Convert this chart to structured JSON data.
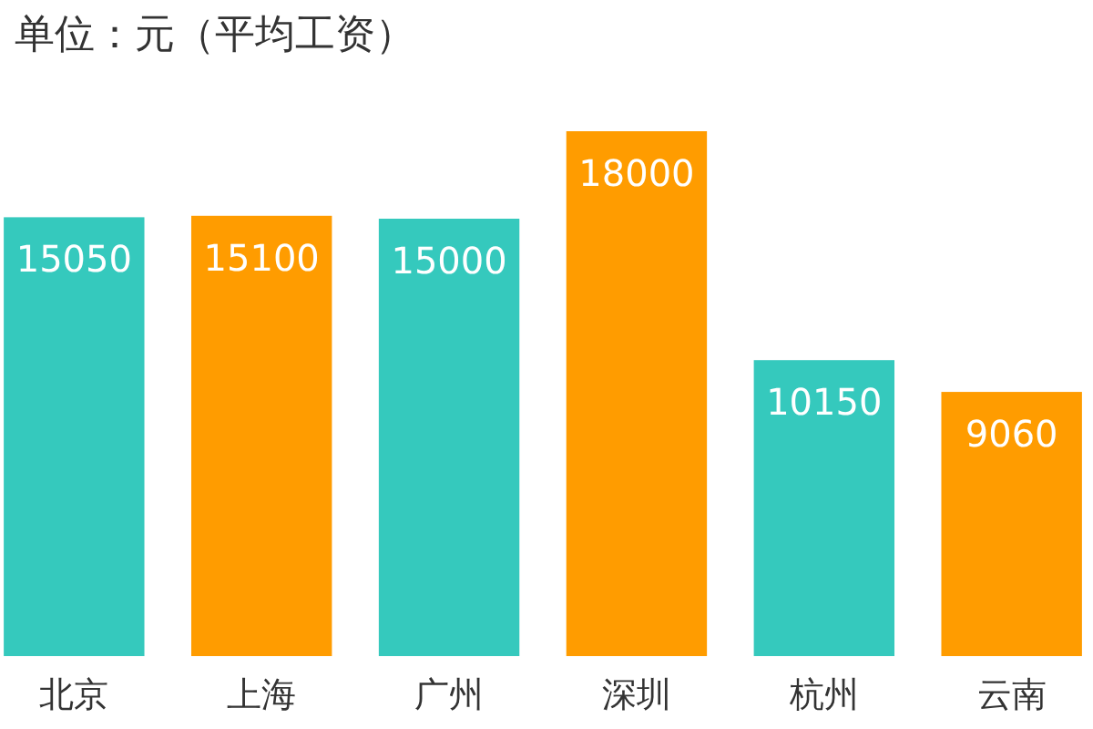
{
  "chart_data": {
    "type": "bar",
    "title": "单位：元（平均工资）",
    "categories": [
      "北京",
      "上海",
      "广州",
      "深圳",
      "杭州",
      "云南"
    ],
    "values": [
      15050,
      15100,
      15000,
      18000,
      10150,
      9060
    ],
    "colors": [
      "#35c9bd",
      "#ff9c00",
      "#35c9bd",
      "#ff9c00",
      "#35c9bd",
      "#ff9c00"
    ],
    "data_labels": true
  }
}
